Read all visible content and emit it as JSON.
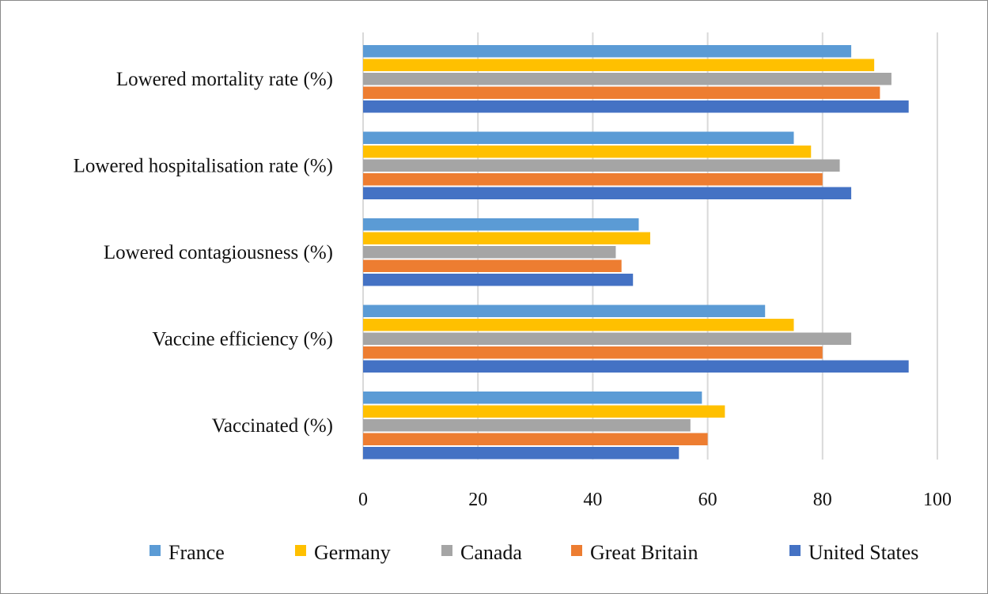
{
  "chart_data": {
    "type": "bar",
    "orientation": "horizontal",
    "title": "",
    "xlabel": "",
    "ylabel": "",
    "xlim": [
      0,
      100
    ],
    "x_ticks": [
      0,
      20,
      40,
      60,
      80,
      100
    ],
    "grid": "vertical",
    "legend_position": "bottom",
    "categories": [
      "Lowered mortality rate (%)",
      "Lowered hospitalisation rate (%)",
      "Lowered contagiousness (%)",
      "Vaccine efficiency (%)",
      "Vaccinated (%)"
    ],
    "series": [
      {
        "name": "France",
        "color": "#5B9BD5",
        "values": [
          85,
          75,
          48,
          70,
          59
        ]
      },
      {
        "name": "Germany",
        "color": "#FFC000",
        "values": [
          89,
          78,
          50,
          75,
          63
        ]
      },
      {
        "name": "Canada",
        "color": "#A5A5A5",
        "values": [
          92,
          83,
          44,
          85,
          57
        ]
      },
      {
        "name": "Great Britain",
        "color": "#ED7D31",
        "values": [
          90,
          80,
          45,
          80,
          60
        ]
      },
      {
        "name": "United States",
        "color": "#4472C4",
        "values": [
          95,
          85,
          47,
          95,
          55
        ]
      }
    ]
  }
}
